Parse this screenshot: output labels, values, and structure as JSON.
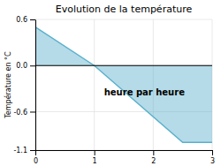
{
  "chart_data": {
    "type": "area",
    "title": "Evolution de la température",
    "y_label": "Température en °C",
    "x": [
      0,
      1,
      2.5,
      3
    ],
    "series": [
      {
        "name": null,
        "color": "#5ab0cc",
        "values": [
          0.5,
          0.0,
          -1.0,
          -1.0
        ]
      }
    ],
    "xlim": [
      0,
      3.0
    ],
    "ylim": [
      -1.1,
      0.6
    ],
    "xticks": [
      0,
      1,
      2,
      3
    ],
    "yticks": [
      -1.1,
      -0.6,
      {
        "value": 0.0,
        "label": "0.0"
      },
      0.6
    ],
    "grid": true,
    "annotations": [
      {
        "text": "heure par heure",
        "x": 1.85,
        "y": -0.35
      }
    ]
  }
}
